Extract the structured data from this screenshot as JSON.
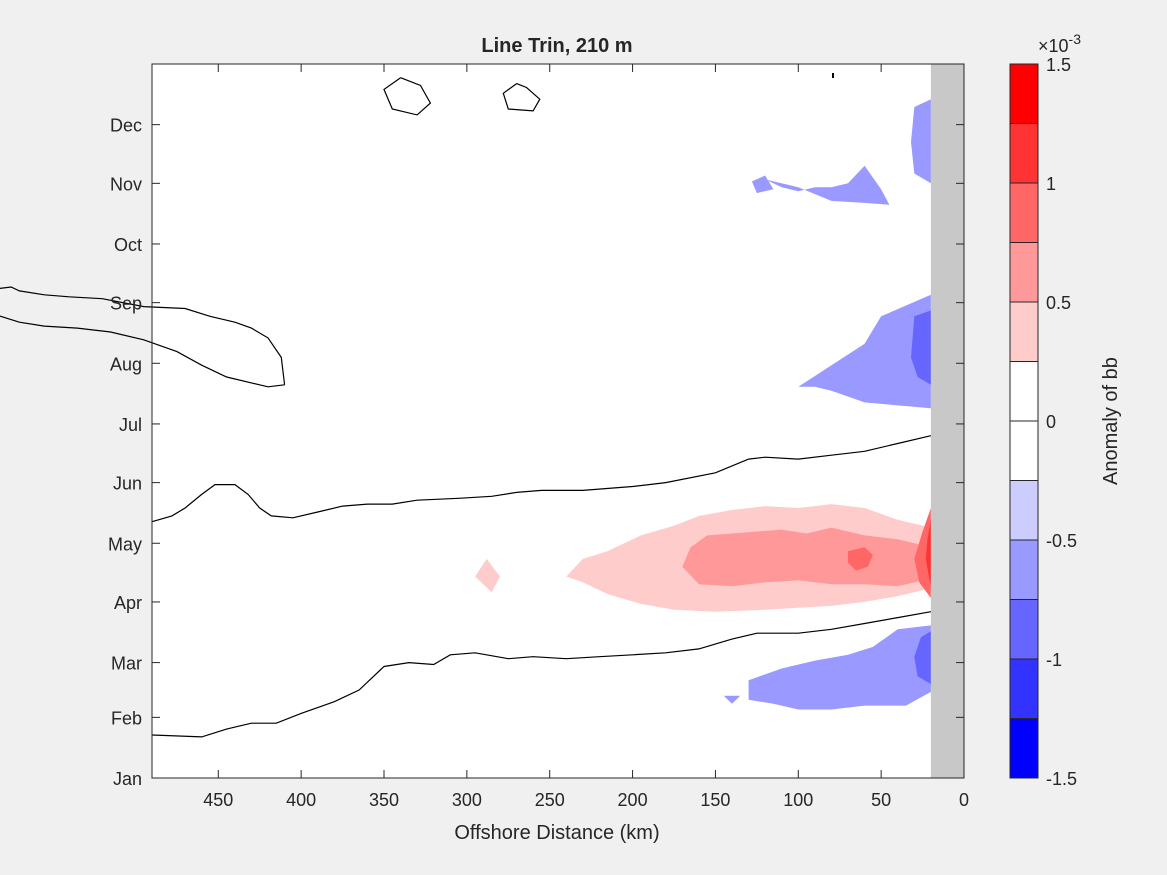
{
  "chart_data": {
    "type": "heatmap",
    "title": "Line Trin, 210 m",
    "xlabel": "Offshore Distance (km)",
    "ylabel": "",
    "x_direction": "reversed",
    "xlim": [
      490,
      0
    ],
    "x_ticks": [
      450,
      400,
      350,
      300,
      250,
      200,
      150,
      100,
      50,
      0
    ],
    "y_ticks": [
      "Jan",
      "Feb",
      "Mar",
      "Apr",
      "May",
      "Jun",
      "Jul",
      "Aug",
      "Sep",
      "Oct",
      "Nov",
      "Dec"
    ],
    "y_tick_days": [
      0,
      31,
      59,
      90,
      120,
      151,
      181,
      212,
      243,
      273,
      304,
      334
    ],
    "ylim_days": [
      0,
      365
    ],
    "colorbar": {
      "label": "Anomaly of bb",
      "exponent_label": "×10",
      "exponent_power": "-3",
      "range": [
        -1.5,
        1.5
      ],
      "levels": 12,
      "tick_values": [
        1.5,
        1,
        0.5,
        0,
        -0.5,
        -1,
        -1.5
      ],
      "tick_labels": [
        "1.5",
        "1",
        "0.5",
        "0",
        "-0.5",
        "-1",
        "-1.5"
      ],
      "colors": [
        "#ff0000",
        "#ff3333",
        "#ff6666",
        "#ff9999",
        "#ffcccc",
        "#ffffff",
        "#ffffff",
        "#ccccff",
        "#9999ff",
        "#6666ff",
        "#3333ff",
        "#0000ff"
      ]
    },
    "land_mask": {
      "from_km": 20,
      "to_km": 0,
      "color": "#c8c8c8"
    },
    "zero_contours": [
      {
        "name": "summer-upper",
        "points": [
          [
            490,
            131
          ],
          [
            478,
            134
          ],
          [
            470,
            138
          ],
          [
            460,
            145
          ],
          [
            452,
            150
          ],
          [
            440,
            150
          ],
          [
            432,
            145
          ],
          [
            425,
            138
          ],
          [
            418,
            134
          ],
          [
            405,
            133
          ],
          [
            390,
            136
          ],
          [
            375,
            139
          ],
          [
            360,
            140
          ],
          [
            345,
            140
          ],
          [
            330,
            142
          ],
          [
            305,
            143
          ],
          [
            285,
            144
          ],
          [
            270,
            146
          ],
          [
            255,
            147
          ],
          [
            230,
            147
          ],
          [
            200,
            149
          ],
          [
            180,
            151
          ],
          [
            150,
            156
          ],
          [
            130,
            163
          ],
          [
            120,
            164
          ],
          [
            100,
            163
          ],
          [
            80,
            165
          ],
          [
            60,
            167
          ],
          [
            40,
            171
          ],
          [
            20,
            175
          ]
        ]
      },
      {
        "name": "summer-lower",
        "points": [
          [
            490,
            22
          ],
          [
            460,
            21
          ],
          [
            445,
            25
          ],
          [
            430,
            28
          ],
          [
            415,
            28
          ],
          [
            400,
            33
          ],
          [
            380,
            39
          ],
          [
            365,
            45
          ],
          [
            350,
            57
          ],
          [
            335,
            59
          ],
          [
            320,
            58
          ],
          [
            310,
            63
          ],
          [
            295,
            64
          ],
          [
            275,
            61
          ],
          [
            260,
            62
          ],
          [
            240,
            61
          ],
          [
            220,
            62
          ],
          [
            200,
            63
          ],
          [
            180,
            64
          ],
          [
            160,
            66
          ],
          [
            140,
            71
          ],
          [
            125,
            74
          ],
          [
            100,
            74
          ],
          [
            80,
            76
          ],
          [
            60,
            79
          ],
          [
            40,
            82
          ],
          [
            20,
            85
          ]
        ]
      },
      {
        "name": "aug-sep-loop",
        "points": [
          [
            410,
            201
          ],
          [
            412,
            215
          ],
          [
            420,
            225
          ],
          [
            430,
            230
          ],
          [
            440,
            233
          ],
          [
            455,
            236
          ],
          [
            470,
            240
          ],
          [
            495,
            241
          ],
          [
            520,
            245
          ],
          [
            540,
            246
          ],
          [
            555,
            247
          ],
          [
            570,
            249
          ],
          [
            575,
            251
          ],
          [
            585,
            250
          ],
          [
            590,
            248
          ],
          [
            595,
            243
          ],
          [
            585,
            237
          ],
          [
            570,
            233
          ],
          [
            555,
            231
          ],
          [
            535,
            230
          ],
          [
            515,
            228
          ],
          [
            495,
            224
          ],
          [
            475,
            218
          ],
          [
            460,
            211
          ],
          [
            445,
            205
          ],
          [
            430,
            202
          ],
          [
            420,
            200
          ],
          [
            410,
            201
          ]
        ]
      },
      {
        "name": "dec-loop-a",
        "points": [
          [
            340,
            358
          ],
          [
            350,
            352
          ],
          [
            345,
            342
          ],
          [
            330,
            339
          ],
          [
            322,
            345
          ],
          [
            328,
            354
          ],
          [
            340,
            358
          ]
        ]
      },
      {
        "name": "dec-loop-b",
        "points": [
          [
            270,
            355
          ],
          [
            278,
            350
          ],
          [
            275,
            342
          ],
          [
            260,
            341
          ],
          [
            256,
            347
          ],
          [
            264,
            353
          ],
          [
            270,
            355
          ]
        ]
      }
    ],
    "anomaly_patches": [
      {
        "name": "spring-light-red",
        "level": 0.5,
        "points": [
          [
            240,
            103
          ],
          [
            230,
            112
          ],
          [
            215,
            116
          ],
          [
            195,
            124
          ],
          [
            175,
            129
          ],
          [
            160,
            134
          ],
          [
            140,
            137
          ],
          [
            120,
            139
          ],
          [
            100,
            138
          ],
          [
            80,
            140
          ],
          [
            60,
            138
          ],
          [
            40,
            132
          ],
          [
            20,
            128
          ],
          [
            20,
            97
          ],
          [
            40,
            93
          ],
          [
            60,
            90
          ],
          [
            80,
            88
          ],
          [
            100,
            87
          ],
          [
            120,
            86
          ],
          [
            150,
            85
          ],
          [
            175,
            86
          ],
          [
            195,
            89
          ],
          [
            215,
            94
          ],
          [
            230,
            100
          ],
          [
            240,
            103
          ]
        ]
      },
      {
        "name": "spring-medium-red",
        "level": 0.75,
        "points": [
          [
            170,
            108
          ],
          [
            165,
            118
          ],
          [
            155,
            124
          ],
          [
            140,
            125
          ],
          [
            125,
            126
          ],
          [
            110,
            127
          ],
          [
            95,
            125
          ],
          [
            80,
            128
          ],
          [
            60,
            124
          ],
          [
            40,
            122
          ],
          [
            20,
            118
          ],
          [
            20,
            102
          ],
          [
            40,
            98
          ],
          [
            60,
            99
          ],
          [
            80,
            99
          ],
          [
            100,
            101
          ],
          [
            120,
            100
          ],
          [
            140,
            98
          ],
          [
            160,
            99
          ],
          [
            170,
            108
          ]
        ]
      },
      {
        "name": "spring-coast-red-1",
        "level": 1.0,
        "points": [
          [
            20,
            138
          ],
          [
            25,
            126
          ],
          [
            30,
            112
          ],
          [
            27,
            100
          ],
          [
            20,
            92
          ]
        ]
      },
      {
        "name": "spring-coast-red-2",
        "level": 1.25,
        "points": [
          [
            20,
            132
          ],
          [
            22,
            122
          ],
          [
            23,
            112
          ],
          [
            21,
            102
          ],
          [
            20,
            98
          ]
        ]
      },
      {
        "name": "spring-spot-red",
        "level": 1.0,
        "points": [
          [
            70,
            116
          ],
          [
            60,
            118
          ],
          [
            55,
            114
          ],
          [
            58,
            108
          ],
          [
            65,
            106
          ],
          [
            70,
            110
          ],
          [
            70,
            116
          ]
        ]
      },
      {
        "name": "apr-spot",
        "level": 0.5,
        "points": [
          [
            295,
            103
          ],
          [
            288,
            112
          ],
          [
            280,
            103
          ],
          [
            285,
            95
          ],
          [
            295,
            103
          ]
        ]
      },
      {
        "name": "nov-blue-a",
        "level": -0.5,
        "points": [
          [
            120,
            306
          ],
          [
            110,
            302
          ],
          [
            100,
            300
          ],
          [
            90,
            302
          ],
          [
            80,
            302
          ],
          [
            70,
            304
          ],
          [
            60,
            313
          ],
          [
            50,
            301
          ],
          [
            45,
            293
          ],
          [
            60,
            294
          ],
          [
            80,
            295
          ],
          [
            100,
            302
          ],
          [
            120,
            306
          ]
        ]
      },
      {
        "name": "nov-blue-b",
        "level": -0.5,
        "points": [
          [
            128,
            305
          ],
          [
            120,
            308
          ],
          [
            115,
            301
          ],
          [
            125,
            299
          ],
          [
            128,
            305
          ]
        ]
      },
      {
        "name": "aug-blue",
        "level": -0.5,
        "points": [
          [
            80,
            198
          ],
          [
            90,
            200
          ],
          [
            100,
            200
          ],
          [
            60,
            222
          ],
          [
            50,
            236
          ],
          [
            20,
            247
          ],
          [
            20,
            189
          ],
          [
            60,
            192
          ],
          [
            80,
            198
          ]
        ]
      },
      {
        "name": "aug-blue-dark",
        "level": -0.75,
        "points": [
          [
            20,
            239
          ],
          [
            30,
            236
          ],
          [
            32,
            215
          ],
          [
            28,
            205
          ],
          [
            20,
            201
          ]
        ]
      },
      {
        "name": "mar-blue",
        "level": -0.5,
        "points": [
          [
            130,
            40
          ],
          [
            115,
            38
          ],
          [
            100,
            35
          ],
          [
            80,
            35
          ],
          [
            60,
            37
          ],
          [
            35,
            37
          ],
          [
            20,
            44
          ],
          [
            20,
            78
          ],
          [
            40,
            76
          ],
          [
            55,
            67
          ],
          [
            70,
            63
          ],
          [
            90,
            60
          ],
          [
            110,
            56
          ],
          [
            130,
            50
          ],
          [
            130,
            40
          ]
        ]
      },
      {
        "name": "mar-blue-small",
        "level": -0.5,
        "points": [
          [
            140,
            38
          ],
          [
            135,
            42
          ],
          [
            145,
            42
          ],
          [
            140,
            38
          ]
        ]
      },
      {
        "name": "winter-coast-blue",
        "level": -0.75,
        "points": [
          [
            20,
            48
          ],
          [
            28,
            52
          ],
          [
            30,
            62
          ],
          [
            26,
            72
          ],
          [
            20,
            75
          ]
        ]
      },
      {
        "name": "dec-coast-blue",
        "level": -0.5,
        "points": [
          [
            20,
            347
          ],
          [
            30,
            343
          ],
          [
            32,
            325
          ],
          [
            30,
            309
          ],
          [
            20,
            304
          ]
        ]
      }
    ]
  }
}
